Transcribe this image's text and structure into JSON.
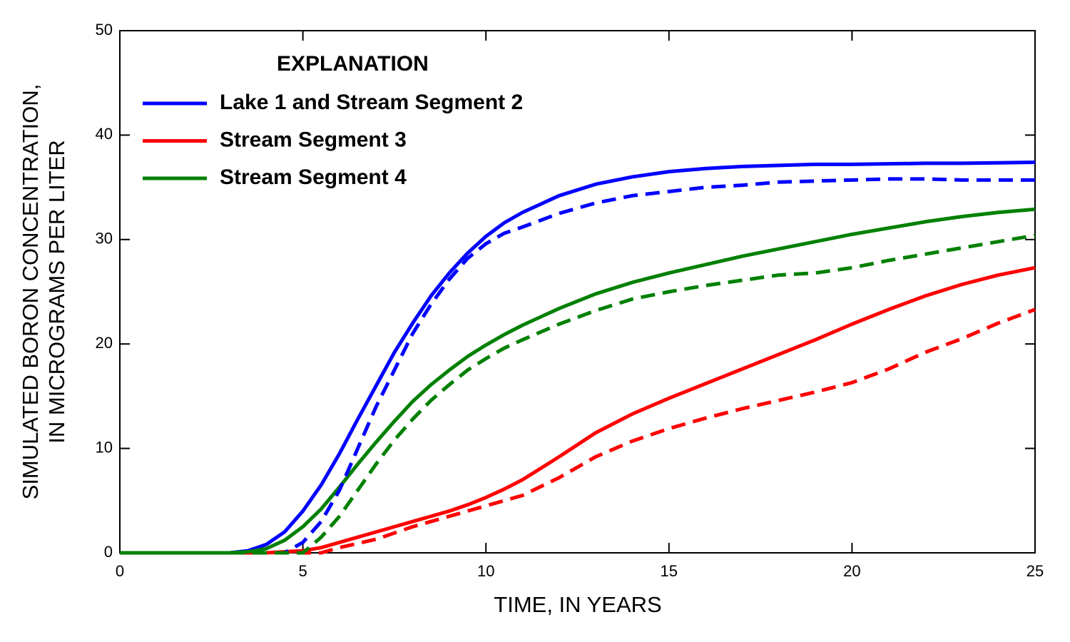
{
  "chart_data": {
    "type": "line",
    "xlabel": "TIME, IN YEARS",
    "ylabel": [
      "SIMULATED BORON CONCENTRATION,",
      "IN MICROGRAMS PER LITER"
    ],
    "legend_title": "EXPLANATION",
    "legend": "upper left",
    "grid": false,
    "xlim": [
      0,
      25
    ],
    "xticks": [
      0,
      5,
      10,
      15,
      20,
      25
    ],
    "ylim": [
      0,
      50
    ],
    "yticks": [
      0,
      10,
      20,
      30,
      40,
      50
    ],
    "x": [
      0,
      1,
      2,
      3,
      3.5,
      4,
      4.5,
      5,
      5.5,
      6,
      6.5,
      7,
      7.5,
      8,
      8.5,
      9,
      9.5,
      10,
      10.5,
      11,
      12,
      13,
      14,
      15,
      16,
      17,
      18,
      19,
      20,
      21,
      22,
      23,
      24,
      25
    ],
    "series": [
      {
        "name": "Lake 1 and Stream Segment 2",
        "color": "#0000ff",
        "dashed": false,
        "values": [
          0,
          0,
          0,
          0,
          0.2,
          0.8,
          2,
          4,
          6.5,
          9.5,
          12.8,
          16,
          19.2,
          22,
          24.6,
          26.8,
          28.7,
          30.3,
          31.6,
          32.6,
          34.2,
          35.3,
          36,
          36.5,
          36.8,
          37,
          37.1,
          37.2,
          37.2,
          37.25,
          37.3,
          37.3,
          37.35,
          37.4
        ]
      },
      {
        "name": "Stream Segment 3",
        "color": "#ff0000",
        "dashed": false,
        "values": [
          0,
          0,
          0,
          0,
          0,
          0,
          0.1,
          0.2,
          0.5,
          1,
          1.5,
          2,
          2.5,
          3,
          3.5,
          4,
          4.6,
          5.3,
          6.1,
          7,
          9.2,
          11.5,
          13.3,
          14.8,
          16.2,
          17.6,
          19,
          20.4,
          21.9,
          23.3,
          24.6,
          25.7,
          26.6,
          27.3
        ]
      },
      {
        "name": "Stream Segment 4",
        "color": "#008000",
        "dashed": false,
        "values": [
          0,
          0,
          0,
          0,
          0.1,
          0.4,
          1.2,
          2.5,
          4.2,
          6.3,
          8.5,
          10.6,
          12.6,
          14.5,
          16.1,
          17.5,
          18.8,
          19.9,
          20.9,
          21.8,
          23.4,
          24.8,
          25.9,
          26.8,
          27.6,
          28.4,
          29.1,
          29.8,
          30.5,
          31.1,
          31.7,
          32.2,
          32.6,
          32.9
        ]
      },
      {
        "color": "#0000ff",
        "dashed": true,
        "values": [
          0,
          0,
          0,
          0,
          0,
          0,
          0,
          1,
          3,
          6,
          10,
          14,
          17.5,
          21,
          23.8,
          26.2,
          28.2,
          29.6,
          30.6,
          31.2,
          32.5,
          33.5,
          34.2,
          34.6,
          35,
          35.2,
          35.5,
          35.6,
          35.7,
          35.8,
          35.8,
          35.7,
          35.7,
          35.7
        ]
      },
      {
        "color": "#ff0000",
        "dashed": true,
        "values": [
          0,
          0,
          0,
          0,
          0,
          0,
          0,
          0,
          0,
          0.5,
          0.9,
          1.3,
          1.9,
          2.5,
          3,
          3.5,
          4,
          4.5,
          5,
          5.5,
          7.2,
          9.2,
          10.7,
          11.9,
          12.9,
          13.8,
          14.6,
          15.4,
          16.3,
          17.6,
          19.2,
          20.5,
          22,
          23.3
        ]
      },
      {
        "color": "#008000",
        "dashed": true,
        "values": [
          0,
          0,
          0,
          0,
          0,
          0,
          0,
          0,
          1.5,
          3.5,
          6,
          8.5,
          10.8,
          12.8,
          14.6,
          16.1,
          17.5,
          18.6,
          19.6,
          20.4,
          21.9,
          23.2,
          24.3,
          25,
          25.6,
          26.1,
          26.6,
          26.8,
          27.3,
          28,
          28.6,
          29.2,
          29.8,
          30.4
        ]
      }
    ]
  }
}
